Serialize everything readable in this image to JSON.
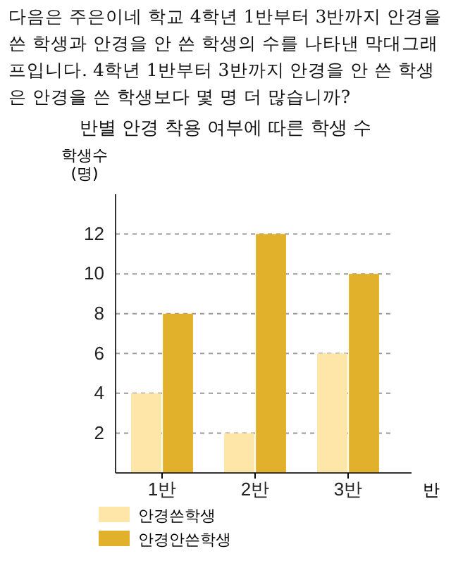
{
  "chart_data": {
    "type": "bar",
    "title": "반별 안경 착용 여부에 따른 학생 수",
    "annotations": [
      "다음은 주은이네 학교 4학년 1반부터 3반까지 안경을 쓴 학생과 안경을 안 쓴 학생의 수를 나타낸 막대그래프입니다. 4학년 1반부터 3반까지 안경을 안 쓴 학생은 안경을 쓴 학생보다 몇 명 더 많습니까?"
    ],
    "xlabel": "반",
    "ylabel": "학생수\n(명)",
    "categories": [
      "1반",
      "2반",
      "3반"
    ],
    "series": [
      {
        "name": "안경쓴학생",
        "color": "#fde6a8",
        "values": [
          4,
          2,
          6
        ]
      },
      {
        "name": "안경안쓴학생",
        "color": "#e1b12c",
        "values": [
          8,
          12,
          10
        ]
      }
    ],
    "ylim": [
      0,
      14
    ],
    "yticks": [
      2,
      4,
      6,
      8,
      10,
      12
    ],
    "grid": "y",
    "legend": "bottom left"
  }
}
